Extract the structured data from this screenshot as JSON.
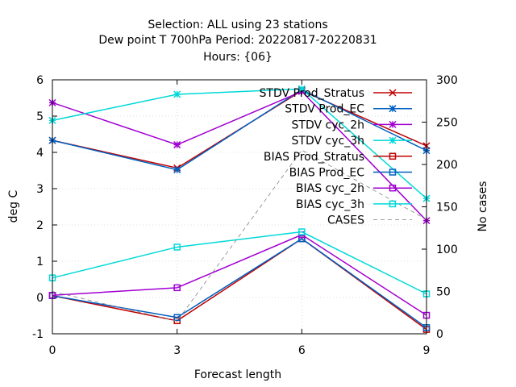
{
  "chart_data": {
    "type": "line",
    "title_lines": [
      "Selection: ALL using    23 stations",
      "Dew point T 700hPa   Period: 20220817-20220831",
      "Hours: {06}"
    ],
    "xlabel": "Forecast length",
    "ylabel": "deg C",
    "y2label": "No cases",
    "x": [
      0,
      3,
      6,
      9
    ],
    "xlim": [
      0,
      9
    ],
    "ylim": [
      -1,
      6
    ],
    "y2lim": [
      0,
      300
    ],
    "x_ticks": [
      "0",
      "3",
      "6",
      "9"
    ],
    "y_ticks": [
      "-1",
      "0",
      "1",
      "2",
      "3",
      "4",
      "5",
      "6"
    ],
    "y2_ticks": [
      "0",
      "50",
      "100",
      "150",
      "200",
      "250",
      "300"
    ],
    "grid": true,
    "legend_position": "top-right",
    "series": [
      {
        "name": "STDV Prod_Stratus",
        "axis": "left",
        "color": "#c00000",
        "marker": "x",
        "dash": false,
        "values": [
          4.33,
          3.57,
          5.7,
          4.18
        ]
      },
      {
        "name": "STDV Prod_EC",
        "axis": "left",
        "color": "#0060c0",
        "marker": "star",
        "dash": false,
        "values": [
          4.33,
          3.52,
          5.73,
          4.05
        ]
      },
      {
        "name": "STDV cyc_2h",
        "axis": "left",
        "color": "#a000d0",
        "marker": "star",
        "dash": false,
        "values": [
          5.37,
          4.21,
          5.68,
          2.12
        ]
      },
      {
        "name": "STDV cyc_3h",
        "axis": "left",
        "color": "#00d8d8",
        "marker": "star",
        "dash": false,
        "values": [
          4.88,
          5.6,
          5.75,
          2.73
        ]
      },
      {
        "name": "BIAS Prod_Stratus",
        "axis": "left",
        "color": "#c00000",
        "marker": "square",
        "dash": false,
        "values": [
          0.05,
          -0.64,
          1.62,
          -0.88
        ]
      },
      {
        "name": "BIAS Prod_EC",
        "axis": "left",
        "color": "#0060c0",
        "marker": "square",
        "dash": false,
        "values": [
          0.05,
          -0.55,
          1.62,
          -0.83
        ]
      },
      {
        "name": "BIAS cyc_2h",
        "axis": "left",
        "color": "#a000d0",
        "marker": "square",
        "dash": false,
        "values": [
          0.06,
          0.27,
          1.73,
          -0.49
        ]
      },
      {
        "name": "BIAS cyc_3h",
        "axis": "left",
        "color": "#00d8d8",
        "marker": "square",
        "dash": false,
        "values": [
          0.54,
          1.39,
          1.81,
          0.1
        ]
      },
      {
        "name": "CASES",
        "axis": "right",
        "color": "#808080",
        "marker": "none",
        "dash": true,
        "values": [
          50,
          15,
          217,
          135
        ]
      }
    ]
  }
}
